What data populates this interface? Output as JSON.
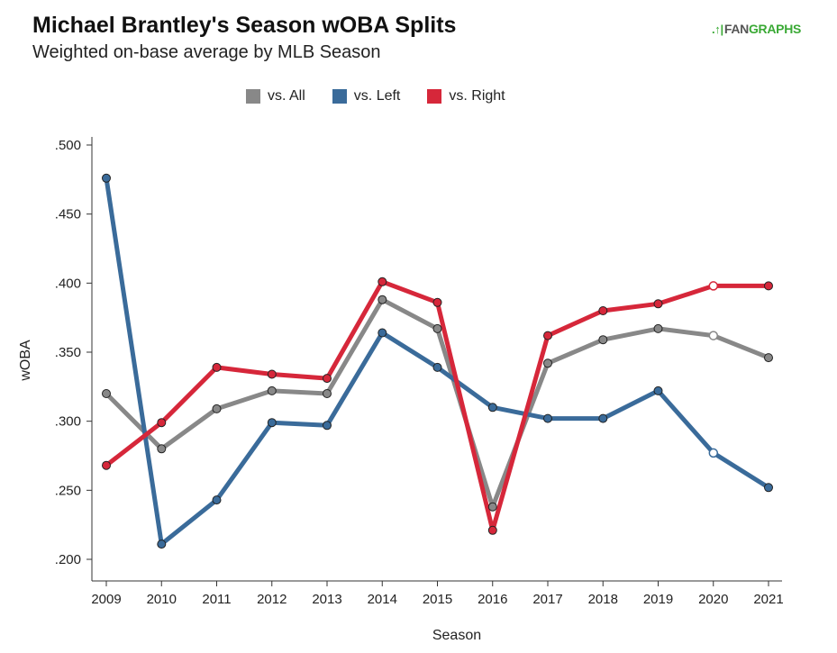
{
  "header": {
    "title": "Michael Brantley's Season wOBA Splits",
    "subtitle": "Weighted on-base average by MLB Season",
    "logo_mark": ".↑|",
    "logo_fan": "FAN",
    "logo_graphs": "GRAPHS"
  },
  "chart_data": {
    "type": "line",
    "title": "Michael Brantley's Season wOBA Splits",
    "subtitle": "Weighted on-base average by MLB Season",
    "xlabel": "Season",
    "ylabel": "wOBA",
    "x": [
      2009,
      2010,
      2011,
      2012,
      2013,
      2014,
      2015,
      2016,
      2017,
      2018,
      2019,
      2020,
      2021
    ],
    "x_tick_labels": [
      "2009",
      "2010",
      "2011",
      "2012",
      "2013",
      "2014",
      "2015",
      "2016",
      "2017",
      "2018",
      "2019",
      "2020",
      "2021"
    ],
    "ylim": [
      0.2,
      0.5
    ],
    "y_ticks": [
      0.2,
      0.25,
      0.3,
      0.35,
      0.4,
      0.45,
      0.5
    ],
    "y_tick_labels": [
      ".200",
      ".250",
      ".300",
      ".350",
      ".400",
      ".450",
      ".500"
    ],
    "grid": false,
    "legend_position": "top",
    "series": [
      {
        "name": "vs. All",
        "color": "#888888",
        "values": [
          0.32,
          0.28,
          0.309,
          0.322,
          0.32,
          0.388,
          0.367,
          0.238,
          0.342,
          0.359,
          0.367,
          0.362,
          0.346
        ],
        "hollow_points": [
          2020
        ]
      },
      {
        "name": "vs. Left",
        "color": "#3a6b9a",
        "values": [
          0.476,
          0.211,
          0.243,
          0.299,
          0.297,
          0.364,
          0.339,
          0.31,
          0.302,
          0.302,
          0.322,
          0.277,
          0.252
        ],
        "hollow_points": [
          2020
        ]
      },
      {
        "name": "vs. Right",
        "color": "#d6273a",
        "values": [
          0.268,
          0.299,
          0.339,
          0.334,
          0.331,
          0.401,
          0.386,
          0.221,
          0.362,
          0.38,
          0.385,
          0.398,
          0.398
        ],
        "hollow_points": [
          2020
        ]
      }
    ]
  }
}
